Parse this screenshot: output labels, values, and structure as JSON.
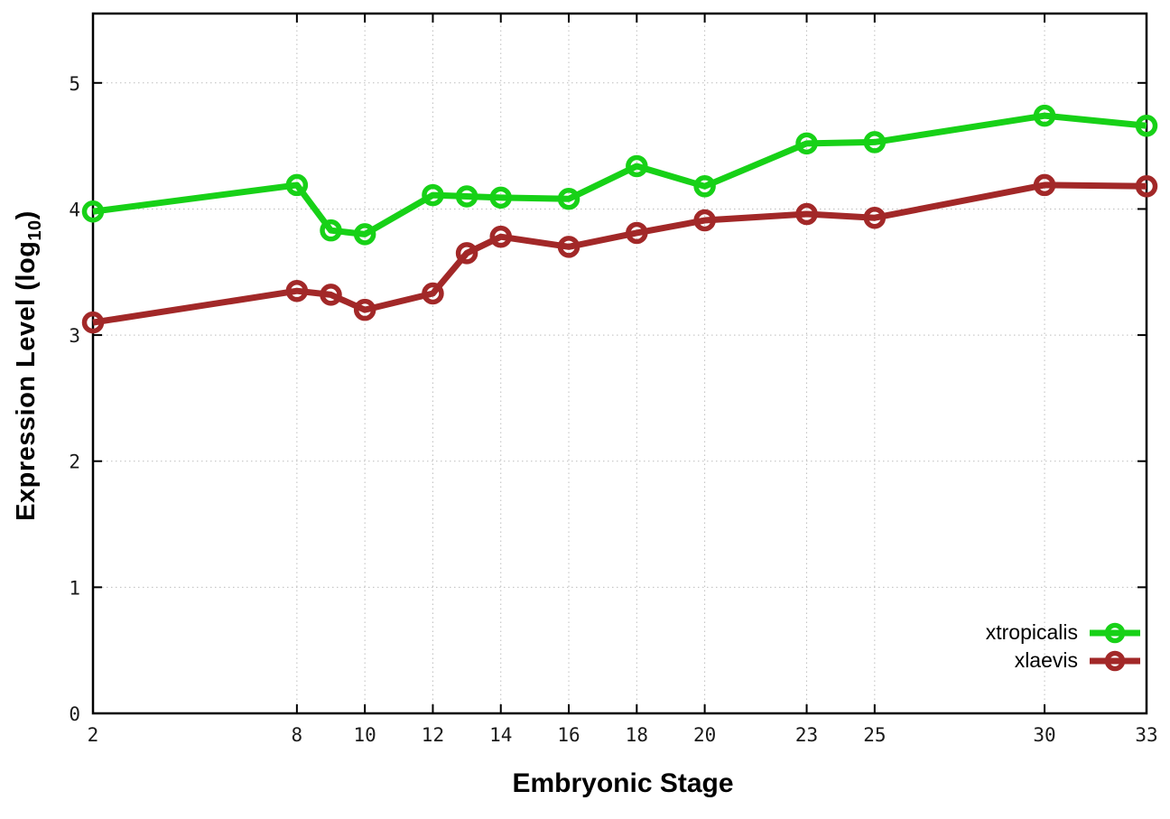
{
  "figure": {
    "background": "#ffffff",
    "axis_color": "#000000",
    "grid_color": "#bdbdbd",
    "tick_label_color": "#1a1a1a"
  },
  "chart_data": {
    "type": "line",
    "title": "",
    "xlabel": "Embryonic Stage",
    "ylabel": "Expression Level (log10)",
    "ylabel_parts": {
      "prefix": "Expression Level (log",
      "subscript": "10",
      "suffix": ")"
    },
    "x": [
      2,
      8,
      9,
      10,
      12,
      13,
      14,
      16,
      18,
      20,
      23,
      25,
      30,
      33
    ],
    "xticks": [
      2,
      8,
      10,
      12,
      14,
      16,
      18,
      20,
      23,
      25,
      30,
      33
    ],
    "yticks": [
      0,
      1,
      2,
      3,
      4,
      5
    ],
    "xlim": [
      2,
      33
    ],
    "ylim": [
      0,
      5.55
    ],
    "grid": true,
    "legend_position": "bottom-right",
    "marker": "open-circle",
    "series": [
      {
        "name": "xtropicalis",
        "color": "#17d117",
        "values": [
          3.98,
          4.19,
          3.83,
          3.8,
          4.11,
          4.1,
          4.09,
          4.08,
          4.34,
          4.18,
          4.52,
          4.53,
          4.74,
          4.66
        ]
      },
      {
        "name": "xlaevis",
        "color": "#a22828",
        "values": [
          3.1,
          3.35,
          3.32,
          3.2,
          3.33,
          3.65,
          3.78,
          3.7,
          3.81,
          3.91,
          3.96,
          3.93,
          4.19,
          4.18
        ]
      }
    ]
  }
}
